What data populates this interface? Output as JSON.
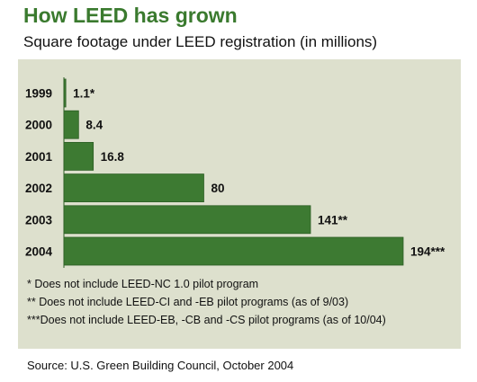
{
  "chart_data": {
    "type": "bar",
    "orientation": "horizontal",
    "title": "How LEED has grown",
    "subtitle": "Square footage under LEED registration (in millions)",
    "categories": [
      "1999",
      "2000",
      "2001",
      "2002",
      "2003",
      "2004"
    ],
    "values": [
      1.1,
      8.4,
      16.8,
      80,
      141,
      194
    ],
    "data_labels": [
      "1.1*",
      "8.4",
      "16.8",
      "80",
      "141**",
      "194***"
    ],
    "xlim": [
      0,
      194
    ],
    "grid": false,
    "bar_color": "#3d7a32",
    "background_color": "#dde0cd",
    "title_color": "#3a7a2e"
  },
  "footnotes": [
    "* Does not include LEED-NC 1.0 pilot program",
    "** Does not include LEED-CI and -EB pilot programs (as of 9/03)",
    "***Does not include LEED-EB, -CB and -CS pilot programs (as of 10/04)"
  ],
  "source": "Source: U.S. Green Building Council, October 2004"
}
